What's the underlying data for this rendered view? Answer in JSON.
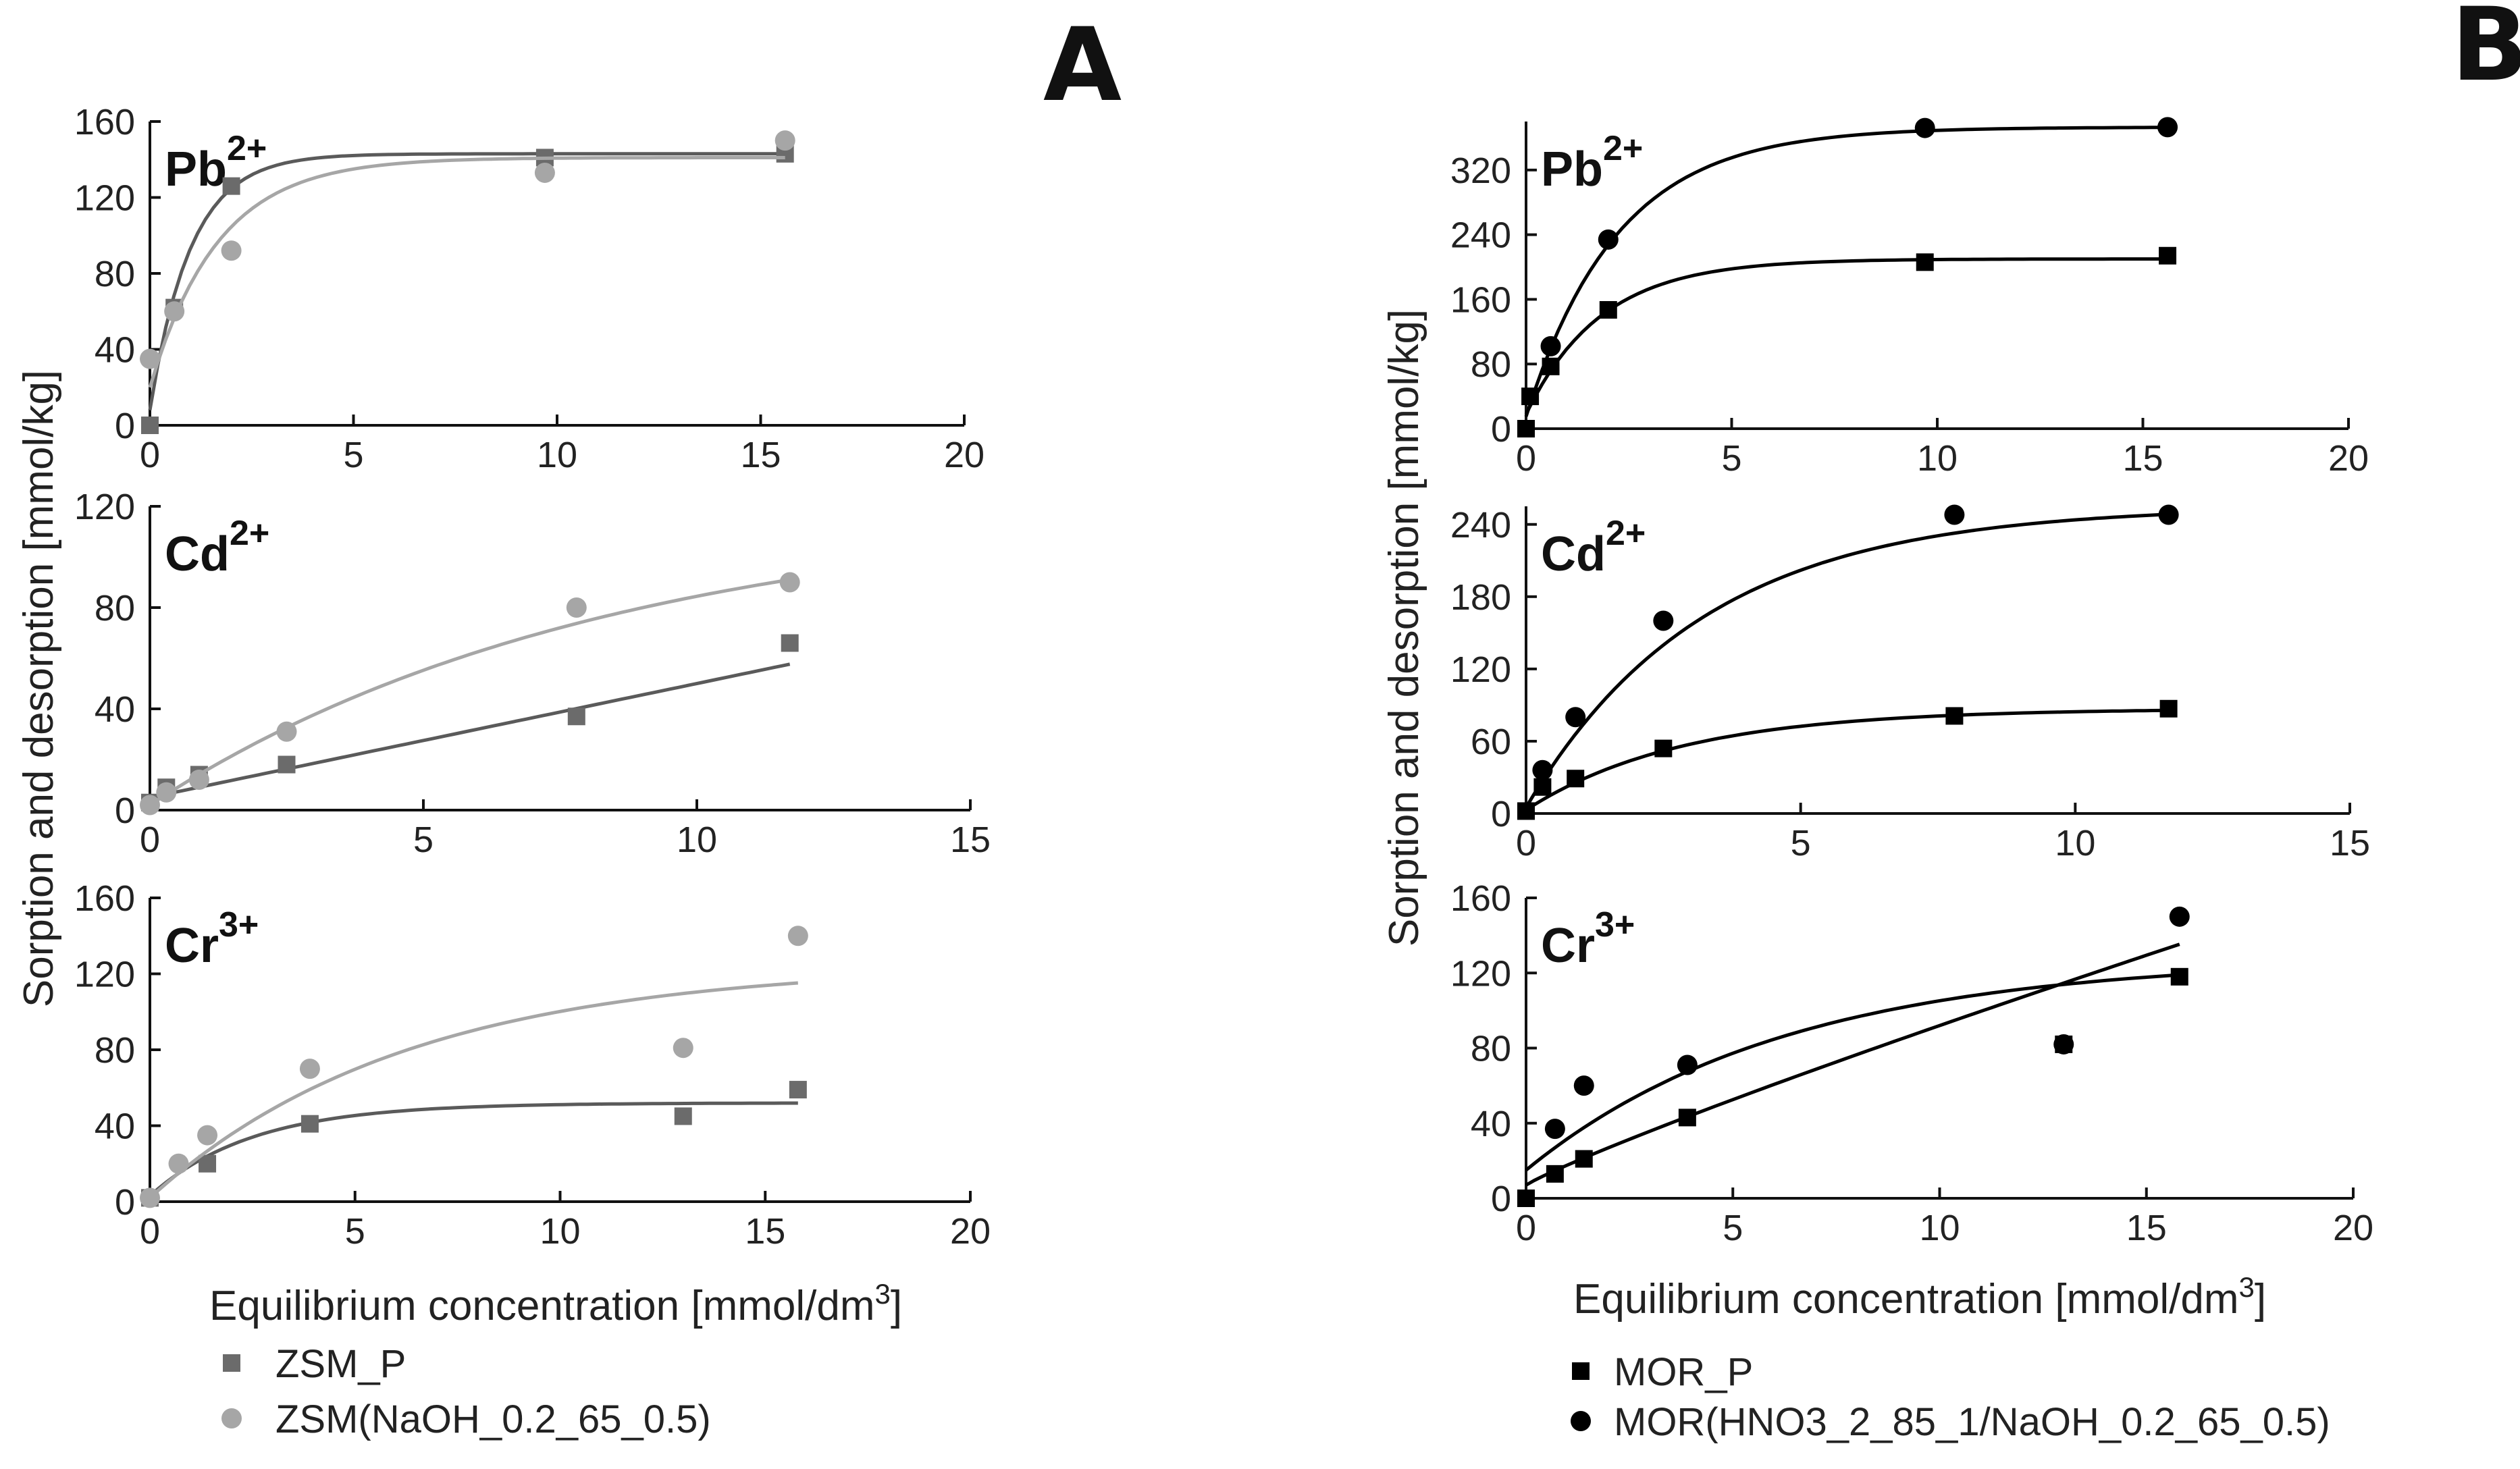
{
  "panels": [
    {
      "letter": "A",
      "y_axis_title": "Sorption and desorption [mmol/kg]",
      "x_axis_title": "Equilibrium concentration [mmol/dm",
      "x_axis_title_sup": "3",
      "x_axis_title_end": "]",
      "legend": [
        {
          "label": "ZSM_P",
          "marker": "square",
          "color": "#6b6b6b"
        },
        {
          "label": "ZSM(NaOH_0.2_65_0.5)",
          "marker": "circle",
          "color": "#a6a6a6"
        }
      ]
    },
    {
      "letter": "B",
      "y_axis_title": "Sorption and desorption [mmol/kg]",
      "x_axis_title": "Equilibrium concentration [mmol/dm",
      "x_axis_title_sup": "3",
      "x_axis_title_end": "]",
      "legend": [
        {
          "label": "MOR_P",
          "marker": "square",
          "color": "#000000"
        },
        {
          "label": "MOR(HNO3_2_85_1/NaOH_0.2_65_0.5)",
          "marker": "circle",
          "color": "#000000"
        }
      ]
    }
  ],
  "chart_data": [
    {
      "type": "scatter",
      "panel": "A",
      "title": "Pb",
      "title_charge": "2+",
      "xlabel": "",
      "ylabel": "",
      "xlim": [
        0,
        20
      ],
      "ylim": [
        0,
        160
      ],
      "xticks": [
        0,
        5,
        10,
        15,
        20
      ],
      "yticks": [
        0,
        40,
        80,
        120,
        160
      ],
      "series": [
        {
          "name": "ZSM_P",
          "marker": "square",
          "color": "#6b6b6b",
          "x": [
            0,
            0.6,
            2.0,
            9.7,
            15.6
          ],
          "y": [
            0,
            62,
            126,
            141,
            143
          ],
          "fit": {
            "model": "exp",
            "qmax": 143,
            "k": 1.0,
            "q0": 8
          }
        },
        {
          "name": "ZSM(NaOH_0.2_65_0.5)",
          "marker": "circle",
          "color": "#a6a6a6",
          "x": [
            0,
            0.6,
            2.0,
            9.7,
            15.6
          ],
          "y": [
            35,
            60,
            92,
            133,
            150
          ],
          "fit": {
            "model": "exp",
            "qmax": 141,
            "k": 0.6,
            "q0": 20
          }
        }
      ]
    },
    {
      "type": "scatter",
      "panel": "A",
      "title": "Cd",
      "title_charge": "2+",
      "xlabel": "",
      "ylabel": "",
      "xlim": [
        0,
        15
      ],
      "ylim": [
        0,
        120
      ],
      "xticks": [
        0,
        5,
        10,
        15
      ],
      "yticks": [
        0,
        40,
        80,
        120
      ],
      "series": [
        {
          "name": "ZSM_P",
          "marker": "square",
          "color": "#6b6b6b",
          "x": [
            0,
            0.3,
            0.9,
            2.5,
            7.8,
            11.7
          ],
          "y": [
            3,
            9,
            14,
            18,
            37,
            66
          ],
          "fit": {
            "model": "linear",
            "a": 4.5,
            "b": 5.0
          }
        },
        {
          "name": "ZSM(NaOH_0.2_65_0.5)",
          "marker": "circle",
          "color": "#a6a6a6",
          "x": [
            0,
            0.3,
            0.9,
            2.5,
            7.8,
            11.7
          ],
          "y": [
            2,
            7,
            12,
            31,
            80,
            90
          ],
          "fit": {
            "model": "exp",
            "qmax": 120,
            "k": 0.12,
            "q0": 2
          }
        }
      ]
    },
    {
      "type": "scatter",
      "panel": "A",
      "title": "Cr",
      "title_charge": "3+",
      "xlabel": "Equilibrium concentration [mmol/dm3]",
      "ylabel": "",
      "xlim": [
        0,
        20
      ],
      "ylim": [
        0,
        160
      ],
      "xticks": [
        0,
        5,
        10,
        15,
        20
      ],
      "yticks": [
        0,
        40,
        80,
        120,
        160
      ],
      "series": [
        {
          "name": "ZSM_P",
          "marker": "square",
          "color": "#6b6b6b",
          "x": [
            0,
            1.4,
            3.9,
            13.0,
            15.8
          ],
          "y": [
            2,
            20,
            41,
            45,
            59
          ],
          "fit": {
            "model": "exp",
            "qmax": 52,
            "k": 0.4,
            "q0": 3
          }
        },
        {
          "name": "ZSM(NaOH_0.2_65_0.5)",
          "marker": "circle",
          "color": "#a6a6a6",
          "x": [
            0,
            0.7,
            1.4,
            3.9,
            13.0,
            15.8
          ],
          "y": [
            2,
            20,
            35,
            70,
            81,
            140
          ],
          "fit": {
            "model": "exp",
            "qmax": 125,
            "k": 0.16,
            "q0": 2
          }
        }
      ]
    },
    {
      "type": "scatter",
      "panel": "B",
      "title": "Pb",
      "title_charge": "2+",
      "xlabel": "",
      "ylabel": "",
      "xlim": [
        0,
        20
      ],
      "ylim": [
        0,
        380
      ],
      "xticks": [
        0,
        5,
        10,
        15,
        20
      ],
      "yticks": [
        0,
        80,
        160,
        240,
        320
      ],
      "series": [
        {
          "name": "MOR_P",
          "marker": "square",
          "color": "#000000",
          "x": [
            0,
            0.1,
            0.6,
            2.0,
            9.7,
            15.6
          ],
          "y": [
            0,
            40,
            77,
            147,
            206,
            214
          ],
          "fit": {
            "model": "exp",
            "qmax": 210,
            "k": 0.55,
            "q0": 18
          }
        },
        {
          "name": "MOR(HNO3_2_85_1/NaOH_0.2_65_0.5)",
          "marker": "circle",
          "color": "#000000",
          "x": [
            0.6,
            2.0,
            9.7,
            15.6
          ],
          "y": [
            102,
            234,
            372,
            373
          ],
          "fit": {
            "model": "exp",
            "qmax": 373,
            "k": 0.45,
            "q0": 15
          }
        }
      ]
    },
    {
      "type": "scatter",
      "panel": "B",
      "title": "Cd",
      "title_charge": "2+",
      "xlabel": "",
      "ylabel": "",
      "xlim": [
        0,
        15
      ],
      "ylim": [
        0,
        255
      ],
      "xticks": [
        0,
        5,
        10,
        15
      ],
      "yticks": [
        0,
        60,
        120,
        180,
        240
      ],
      "series": [
        {
          "name": "MOR_P",
          "marker": "square",
          "color": "#000000",
          "x": [
            0,
            0.3,
            0.9,
            2.5,
            7.8,
            11.7
          ],
          "y": [
            2,
            22,
            29,
            54,
            81,
            87
          ],
          "fit": {
            "model": "exp",
            "qmax": 87,
            "k": 0.35,
            "q0": 3
          }
        },
        {
          "name": "MOR(HNO3_2_85_1/NaOH_0.2_65_0.5)",
          "marker": "circle",
          "color": "#000000",
          "x": [
            0.3,
            0.9,
            2.5,
            7.8,
            11.7
          ],
          "y": [
            36,
            80,
            160,
            248,
            248
          ],
          "fit": {
            "model": "exp",
            "qmax": 255,
            "k": 0.31,
            "q0": 5
          }
        }
      ]
    },
    {
      "type": "scatter",
      "panel": "B",
      "title": "Cr",
      "title_charge": "3+",
      "xlabel": "Equilibrium concentration [mmol/dm3]",
      "ylabel": "",
      "xlim": [
        0,
        20
      ],
      "ylim": [
        0,
        160
      ],
      "xticks": [
        0,
        5,
        10,
        15,
        20
      ],
      "yticks": [
        0,
        40,
        80,
        120,
        160
      ],
      "series": [
        {
          "name": "MOR_P",
          "marker": "square",
          "color": "#000000",
          "x": [
            0,
            0.7,
            1.4,
            3.9,
            13.0,
            15.8
          ],
          "y": [
            0,
            13,
            21,
            43,
            82,
            118
          ],
          "fit": {
            "model": "power",
            "a": 10.7,
            "b": 0.9,
            "c": 7,
            "xmax": 15.8
          }
        },
        {
          "name": "MOR(HNO3_2_85_1/NaOH_0.2_65_0.5)",
          "marker": "circle",
          "color": "#000000",
          "x": [
            0.7,
            1.4,
            3.9,
            13.0,
            15.8
          ],
          "y": [
            37,
            60,
            71,
            82,
            150
          ],
          "fit": {
            "model": "exp",
            "qmax": 128,
            "k": 0.16,
            "q0": 15,
            "xmax": 15.8
          }
        }
      ]
    }
  ]
}
